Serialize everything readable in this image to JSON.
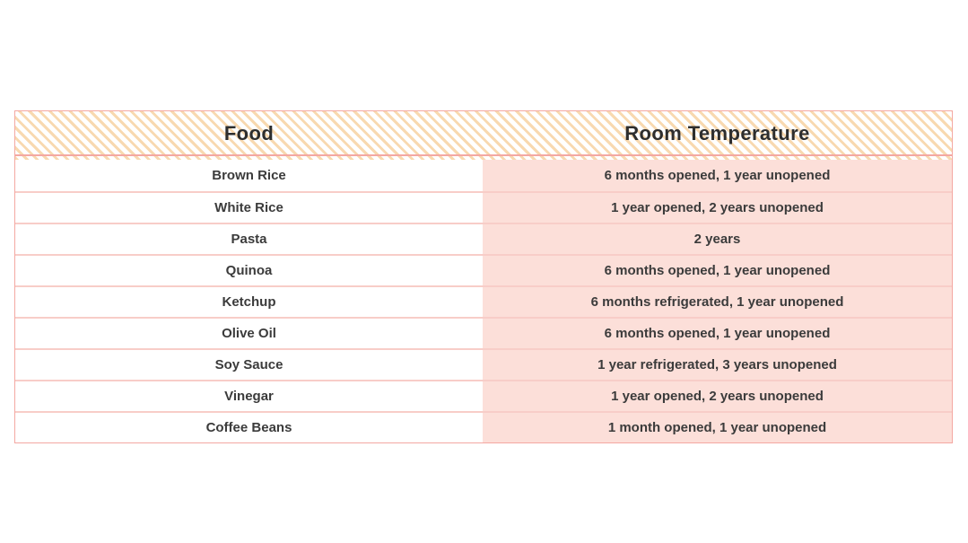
{
  "table": {
    "columns": [
      {
        "label": "Food"
      },
      {
        "label": "Room Temperature"
      }
    ],
    "rows": [
      {
        "food": "Brown Rice",
        "room_temperature": "6 months opened, 1 year unopened"
      },
      {
        "food": "White Rice",
        "room_temperature": "1 year opened, 2 years unopened"
      },
      {
        "food": "Pasta",
        "room_temperature": "2 years"
      },
      {
        "food": "Quinoa",
        "room_temperature": "6 months opened, 1 year unopened"
      },
      {
        "food": "Ketchup",
        "room_temperature": "6 months refrigerated, 1 year unopened"
      },
      {
        "food": "Olive Oil",
        "room_temperature": "6 months opened, 1 year unopened"
      },
      {
        "food": "Soy Sauce",
        "room_temperature": "1 year refrigerated, 3 years unopened"
      },
      {
        "food": "Vinegar",
        "room_temperature": "1 year opened, 2 years unopened"
      },
      {
        "food": "Coffee Beans",
        "room_temperature": "1 month opened, 1 year unopened"
      }
    ]
  },
  "colors": {
    "header_stripe": "#f8d9b0",
    "pink_cell": "#fcdfd9",
    "row_separator": "#f8cdc8",
    "table_border": "#f4a8a2",
    "header_text": "#2e2e2e",
    "row_text": "#3b3b3b"
  }
}
